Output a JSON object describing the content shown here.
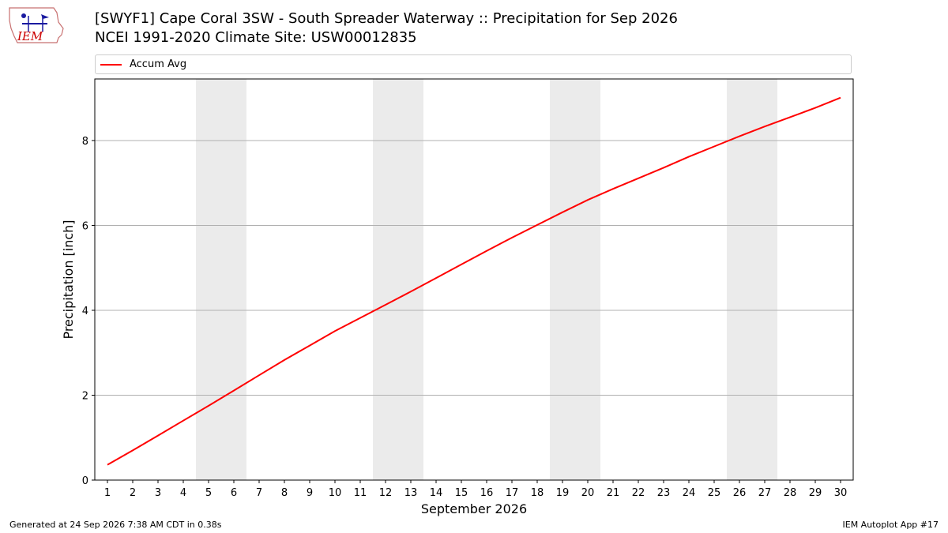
{
  "header": {
    "title_line1": "[SWYF1] Cape Coral 3SW - South Spreader Waterway :: Precipitation for Sep 2026",
    "title_line2": "NCEI 1991-2020 Climate Site: USW00012835",
    "logo_text": "IEM"
  },
  "footer": {
    "generated": "Generated at 24 Sep 2026 7:38 AM CDT in 0.38s",
    "app": "IEM Autoplot App #17"
  },
  "chart_data": {
    "type": "line",
    "xlabel": "September 2026",
    "ylabel": "Precipitation [inch]",
    "x": [
      1,
      2,
      3,
      4,
      5,
      6,
      7,
      8,
      9,
      10,
      11,
      12,
      13,
      14,
      15,
      16,
      17,
      18,
      19,
      20,
      21,
      22,
      23,
      24,
      25,
      26,
      27,
      28,
      29,
      30
    ],
    "xlim": [
      0.5,
      30.5
    ],
    "ylim": [
      0,
      9.45
    ],
    "yticks": [
      0,
      2,
      4,
      6,
      8
    ],
    "grid": "horizontal",
    "legend_position": "top",
    "weekend_shading": [
      [
        4.5,
        6.5
      ],
      [
        11.5,
        13.5
      ],
      [
        18.5,
        20.5
      ],
      [
        25.5,
        27.5
      ]
    ],
    "series": [
      {
        "name": "Accum Avg",
        "color": "#ff0000",
        "values": [
          0.36,
          0.7,
          1.05,
          1.4,
          1.75,
          2.11,
          2.47,
          2.83,
          3.17,
          3.51,
          3.82,
          4.13,
          4.44,
          4.76,
          5.08,
          5.4,
          5.71,
          6.01,
          6.31,
          6.6,
          6.86,
          7.11,
          7.36,
          7.62,
          7.86,
          8.1,
          8.33,
          8.55,
          8.77,
          9.01
        ]
      }
    ]
  }
}
